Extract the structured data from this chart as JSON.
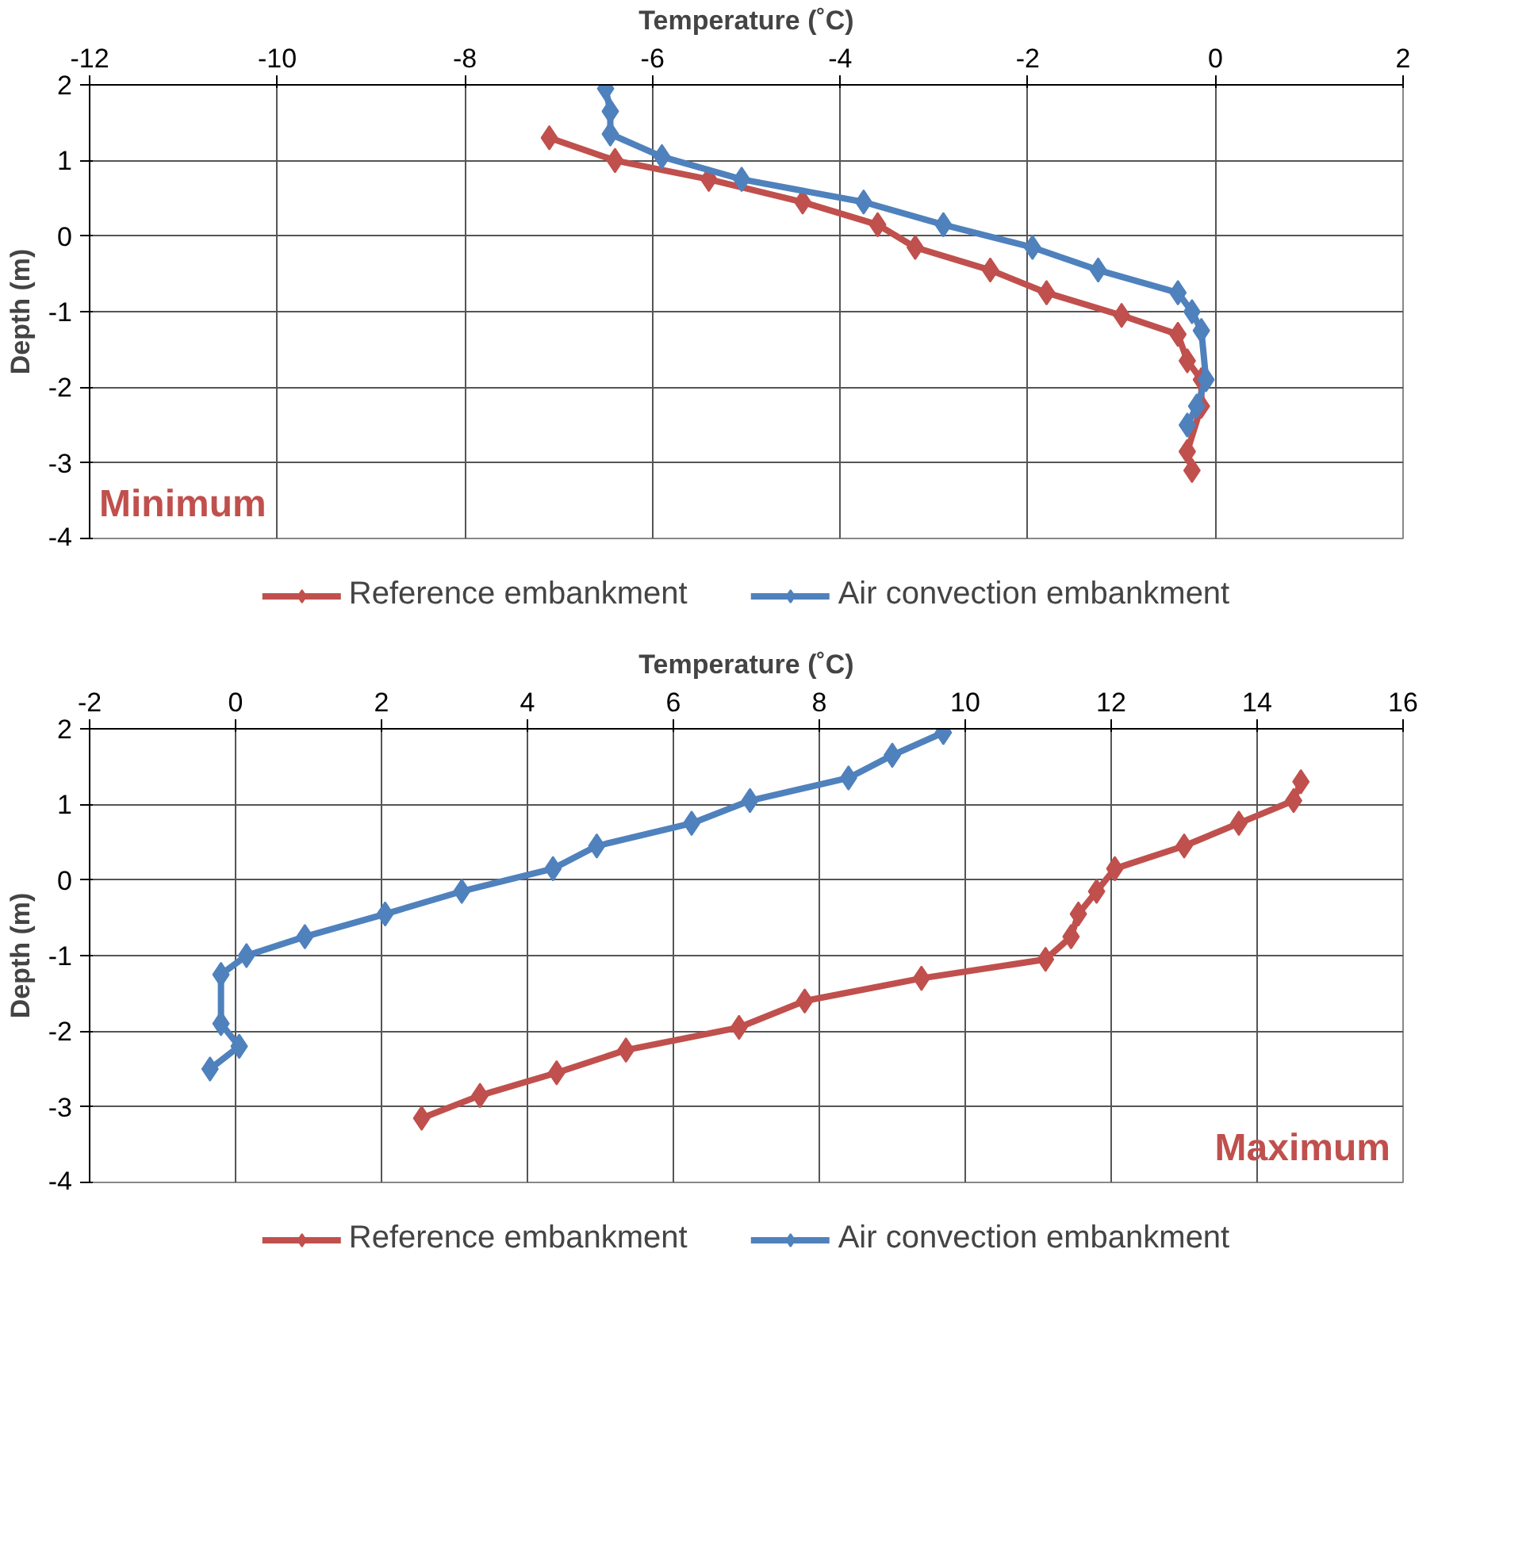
{
  "chart_data": [
    {
      "type": "line",
      "xlabel": "Temperature (˚C)",
      "ylabel": "Depth (m)",
      "xlim": [
        -12,
        2
      ],
      "xticks": [
        -12,
        -10,
        -8,
        -6,
        -4,
        -2,
        0,
        2
      ],
      "ylim": [
        -4,
        2
      ],
      "yticks": [
        -4,
        -3,
        -2,
        -1,
        0,
        1,
        2
      ],
      "grid": true,
      "legend": "bottom",
      "marker": "diamond",
      "line_style": "solid",
      "annotations": [
        "Minimum"
      ],
      "series": [
        {
          "name": "Reference embankment",
          "color": "#c0504d",
          "x": [
            -7.1,
            -6.4,
            -5.4,
            -4.4,
            -3.6,
            -3.2,
            -2.4,
            -1.8,
            -1.0,
            -0.4,
            -0.3,
            -0.15,
            -0.15,
            -0.3,
            -0.25
          ],
          "values": [
            1.3,
            1.0,
            0.75,
            0.45,
            0.15,
            -0.15,
            -0.45,
            -0.75,
            -1.05,
            -1.3,
            -1.65,
            -1.9,
            -2.25,
            -2.85,
            -3.1
          ]
        },
        {
          "name": "Air convection embankment",
          "color": "#4f81bd",
          "x": [
            -6.5,
            -6.45,
            -6.45,
            -5.9,
            -5.05,
            -3.75,
            -2.9,
            -1.95,
            -1.25,
            -0.4,
            -0.25,
            -0.15,
            -0.1,
            -0.2,
            -0.3
          ],
          "values": [
            1.95,
            1.65,
            1.35,
            1.05,
            0.75,
            0.45,
            0.15,
            -0.15,
            -0.45,
            -0.75,
            -1.0,
            -1.25,
            -1.9,
            -2.25,
            -2.5
          ]
        }
      ]
    },
    {
      "type": "line",
      "xlabel": "Temperature (˚C)",
      "ylabel": "Depth (m)",
      "xlim": [
        -2,
        16
      ],
      "xticks": [
        -2,
        0,
        2,
        4,
        6,
        8,
        10,
        12,
        14,
        16
      ],
      "ylim": [
        -4,
        2
      ],
      "yticks": [
        -4,
        -3,
        -2,
        -1,
        0,
        1,
        2
      ],
      "grid": true,
      "legend": "bottom",
      "marker": "diamond",
      "line_style": "solid",
      "annotations": [
        "Maximum"
      ],
      "series": [
        {
          "name": "Reference embankment",
          "color": "#c0504d",
          "x": [
            14.6,
            14.5,
            13.75,
            13.0,
            12.05,
            11.8,
            11.55,
            11.45,
            11.1,
            9.4,
            7.8,
            6.9,
            5.35,
            4.4,
            3.35,
            2.55
          ],
          "values": [
            1.3,
            1.05,
            0.75,
            0.45,
            0.15,
            -0.15,
            -0.45,
            -0.75,
            -1.05,
            -1.3,
            -1.6,
            -1.95,
            -2.25,
            -2.55,
            -2.85,
            -3.15
          ]
        },
        {
          "name": "Air convection embankment",
          "color": "#4f81bd",
          "x": [
            9.7,
            9.0,
            8.4,
            7.05,
            6.25,
            4.95,
            4.35,
            3.1,
            2.05,
            0.95,
            0.15,
            -0.2,
            -0.2,
            0.05,
            -0.35
          ],
          "values": [
            1.95,
            1.65,
            1.35,
            1.05,
            0.75,
            0.45,
            0.15,
            -0.15,
            -0.45,
            -0.75,
            -1.0,
            -1.25,
            -1.9,
            -2.2,
            -2.5
          ]
        }
      ]
    }
  ]
}
